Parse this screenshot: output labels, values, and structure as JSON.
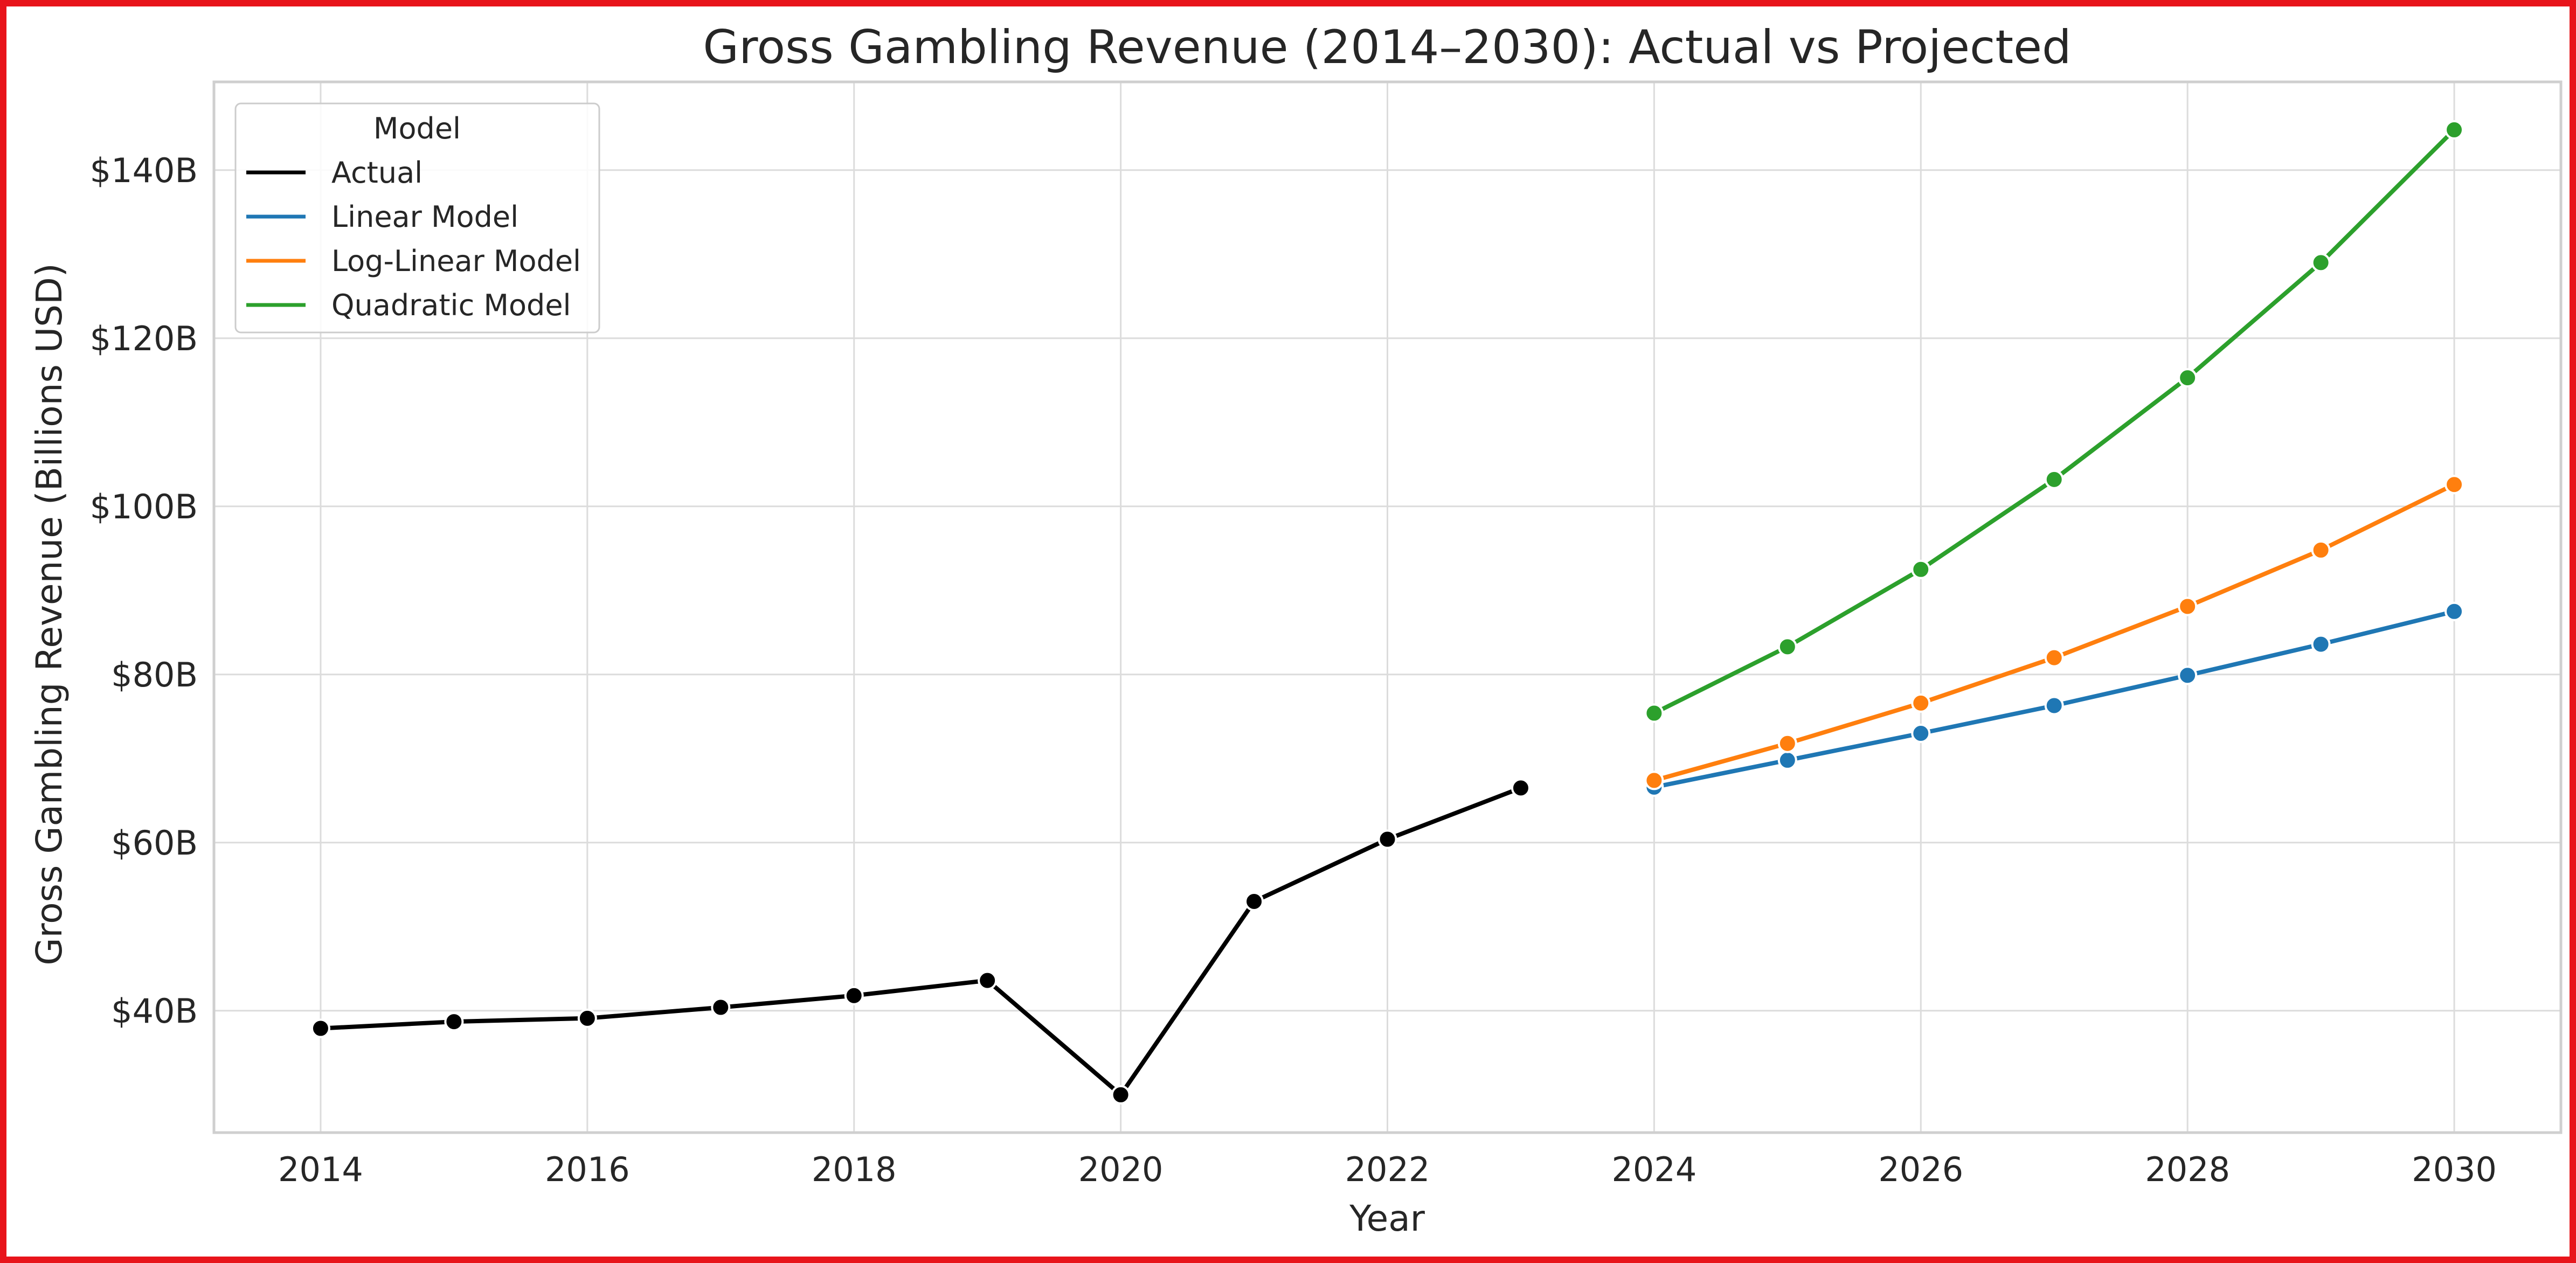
{
  "chart_data": {
    "type": "line",
    "title": "Gross Gambling Revenue (2014–2030): Actual vs Projected",
    "xlabel": "Year",
    "ylabel": "Gross Gambling Revenue (Billions USD)",
    "xlim": [
      2013.2,
      2030.8
    ],
    "ylim": [
      25.5,
      150.5
    ],
    "x_ticks": [
      2014,
      2016,
      2018,
      2020,
      2022,
      2024,
      2026,
      2028,
      2030
    ],
    "y_ticks": [
      40,
      60,
      80,
      100,
      120,
      140
    ],
    "y_tick_labels": [
      "$40B",
      "$60B",
      "$80B",
      "$100B",
      "$120B",
      "$140B"
    ],
    "grid": true,
    "legend": {
      "title": "Model",
      "placement": "top-left"
    },
    "series": [
      {
        "name": "Actual",
        "color": "#000000",
        "x": [
          2014,
          2015,
          2016,
          2017,
          2018,
          2019,
          2020,
          2021,
          2022,
          2023
        ],
        "y": [
          37.9,
          38.7,
          39.1,
          40.4,
          41.8,
          43.6,
          30.0,
          53.0,
          60.4,
          66.5
        ]
      },
      {
        "name": "Linear Model",
        "color": "#1f77b4",
        "x": [
          2024,
          2025,
          2026,
          2027,
          2028,
          2029,
          2030
        ],
        "y": [
          66.6,
          69.8,
          73.0,
          76.3,
          79.9,
          83.6,
          87.5
        ]
      },
      {
        "name": "Log-Linear Model",
        "color": "#ff7f0e",
        "x": [
          2024,
          2025,
          2026,
          2027,
          2028,
          2029,
          2030
        ],
        "y": [
          67.4,
          71.8,
          76.6,
          82.0,
          88.1,
          94.8,
          102.6
        ]
      },
      {
        "name": "Quadratic Model",
        "color": "#2ca02c",
        "x": [
          2024,
          2025,
          2026,
          2027,
          2028,
          2029,
          2030
        ],
        "y": [
          75.4,
          83.3,
          92.5,
          103.2,
          115.3,
          129.0,
          144.8
        ]
      }
    ]
  }
}
